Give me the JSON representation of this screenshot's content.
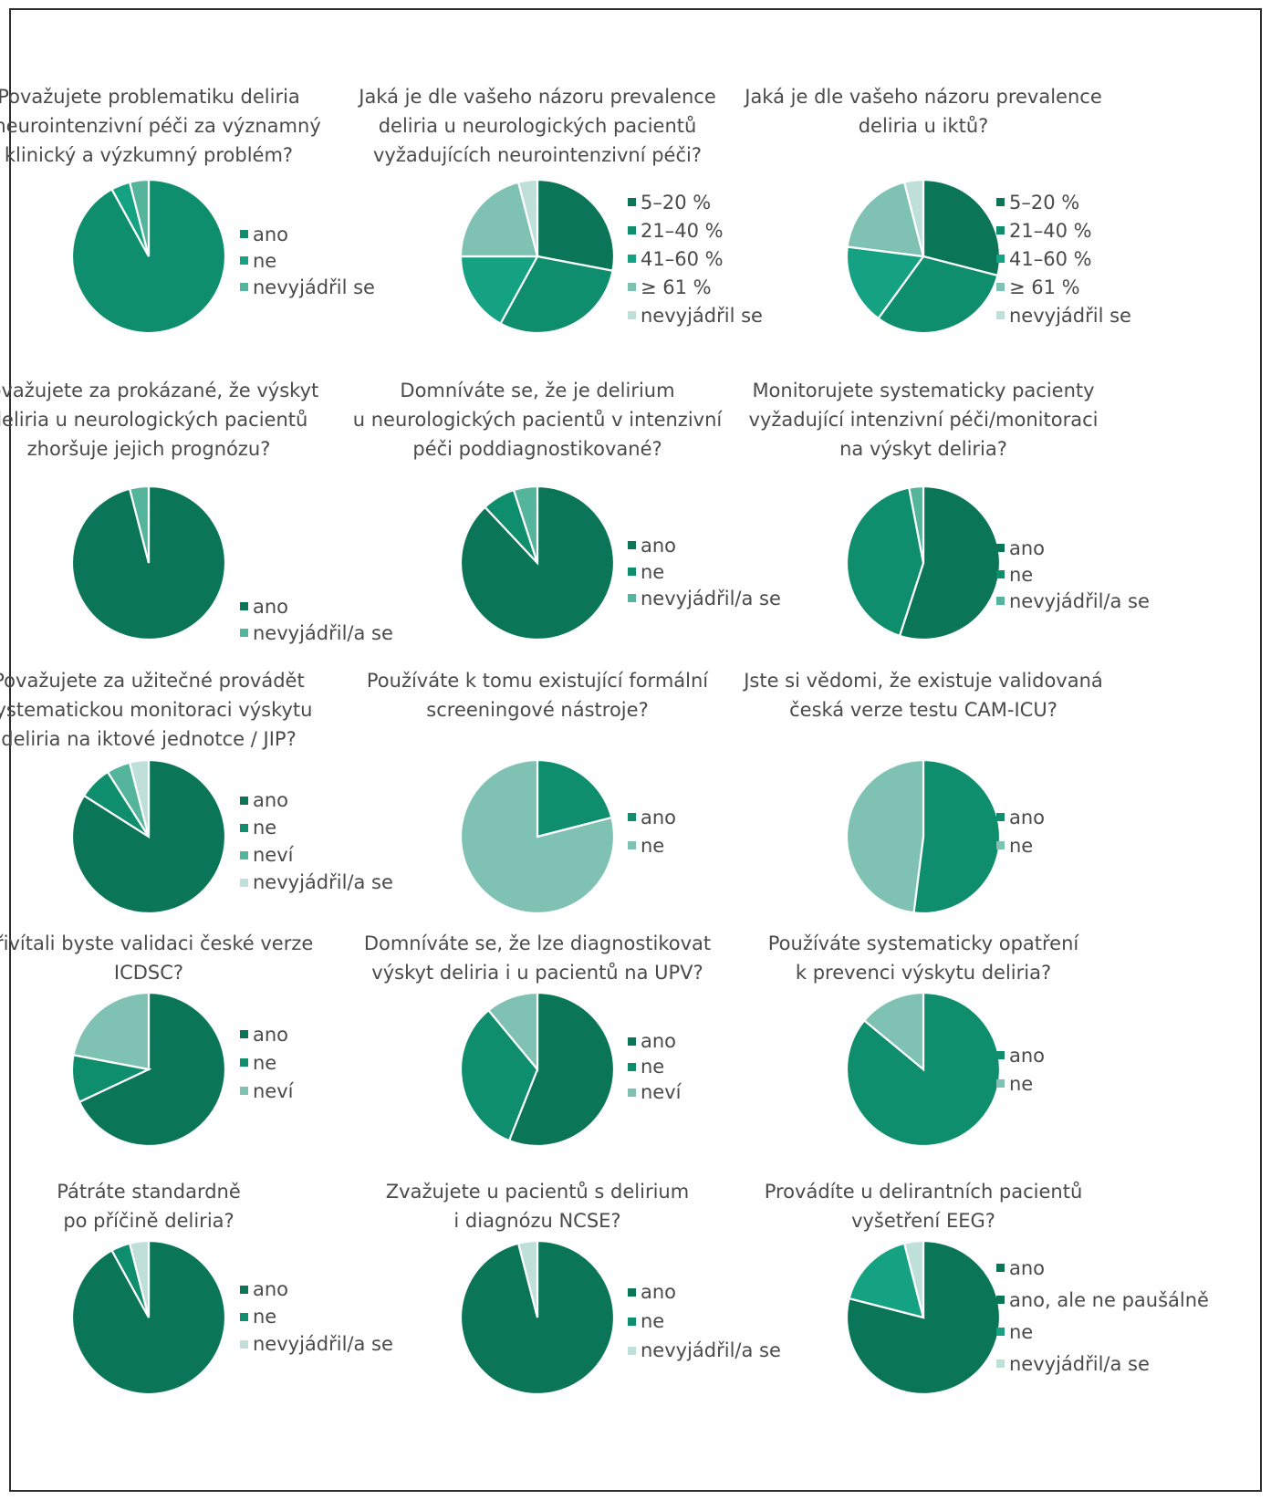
{
  "colors": {
    "c1": "#0b7557",
    "c2": "#0e8e6c",
    "c3": "#15a282",
    "c4": "#7fc2b3",
    "c5": "#bfe0d8"
  },
  "chart_data": [
    {
      "type": "pie",
      "title": "Považujete problematiku deliria\nv neurointenzivní péči za významný\nklinický a výzkumný problém?",
      "categories": [
        "ano",
        "ne",
        "nevyjádřil se"
      ],
      "values": [
        92,
        4,
        4
      ],
      "colors": [
        "#0e8e6c",
        "#15a282",
        "#55b59c"
      ]
    },
    {
      "type": "pie",
      "title": "Jaká je dle vašeho názoru prevalence\ndeliria u neurologických pacientů\nvyžadujících neurointenzivní péči?",
      "categories": [
        "5–20 %",
        "21–40 %",
        "41–60 %",
        "≥ 61 %",
        "nevyjádřil se"
      ],
      "values": [
        28,
        30,
        17,
        21,
        4
      ],
      "colors": [
        "#0b7557",
        "#0e8e6c",
        "#15a282",
        "#7fc2b3",
        "#bfe0d8"
      ]
    },
    {
      "type": "pie",
      "title": "Jaká je dle vašeho názoru prevalence\ndeliria u iktů?",
      "categories": [
        "5–20 %",
        "21–40 %",
        "41–60 %",
        "≥ 61 %",
        "nevyjádřil se"
      ],
      "values": [
        29,
        31,
        17,
        19,
        4
      ],
      "colors": [
        "#0b7557",
        "#0e8e6c",
        "#15a282",
        "#7fc2b3",
        "#bfe0d8"
      ]
    },
    {
      "type": "pie",
      "title": "Považujete za prokázané, že výskyt\ndeliria u neurologických pacientů\nzhoršuje jejich prognózu?",
      "categories": [
        "ano",
        "nevyjádřil/a se"
      ],
      "values": [
        96,
        4
      ],
      "colors": [
        "#0b7557",
        "#55b59c"
      ]
    },
    {
      "type": "pie",
      "title": "Domníváte se, že je delirium\nu neurologických pacientů v intenzivní\npéči poddiagnostikované?",
      "categories": [
        "ano",
        "ne",
        "nevyjádřil/a se"
      ],
      "values": [
        88,
        7,
        5
      ],
      "colors": [
        "#0b7557",
        "#0e8e6c",
        "#55b59c"
      ]
    },
    {
      "type": "pie",
      "title": "Monitorujete systematicky pacienty\nvyžadující intenzivní péči/monitoraci\nna výskyt deliria?",
      "categories": [
        "ano",
        "ne",
        "nevyjádřil/a se"
      ],
      "values": [
        55,
        42,
        3
      ],
      "colors": [
        "#0b7557",
        "#0e8e6c",
        "#55b59c"
      ]
    },
    {
      "type": "pie",
      "title": "Považujete za užitečné provádět\nsystematickou monitoraci výskytu\ndeliria na iktové jednotce / JIP?",
      "categories": [
        "ano",
        "ne",
        "neví",
        "nevyjádřil/a se"
      ],
      "values": [
        84,
        7,
        5,
        4
      ],
      "colors": [
        "#0b7557",
        "#0e8e6c",
        "#55b59c",
        "#bfe0d8"
      ]
    },
    {
      "type": "pie",
      "title": "Používáte k tomu existující formální\nscreeningové nástroje?",
      "categories": [
        "ano",
        "ne"
      ],
      "values": [
        21,
        79
      ],
      "colors": [
        "#0e8e6c",
        "#7fc2b3"
      ]
    },
    {
      "type": "pie",
      "title": "Jste si vědomi, že existuje validovaná\nčeská verze testu CAM-ICU?",
      "categories": [
        "ano",
        "ne"
      ],
      "values": [
        52,
        48
      ],
      "colors": [
        "#0e8e6c",
        "#7fc2b3"
      ]
    },
    {
      "type": "pie",
      "title": "Přivítali byste validaci české verze\nICDSC?",
      "categories": [
        "ano",
        "ne",
        "neví"
      ],
      "values": [
        68,
        10,
        22
      ],
      "colors": [
        "#0b7557",
        "#0e8e6c",
        "#7fc2b3"
      ]
    },
    {
      "type": "pie",
      "title": "Domníváte se, že lze diagnostikovat\nvýskyt deliria i u pacientů na UPV?",
      "categories": [
        "ano",
        "ne",
        "neví"
      ],
      "values": [
        56,
        33,
        11
      ],
      "colors": [
        "#0b7557",
        "#0e8e6c",
        "#7fc2b3"
      ]
    },
    {
      "type": "pie",
      "title": "Používáte systematicky opatření\nk prevenci výskytu deliria?",
      "categories": [
        "ano",
        "ne"
      ],
      "values": [
        86,
        14
      ],
      "colors": [
        "#0e8e6c",
        "#7fc2b3"
      ]
    },
    {
      "type": "pie",
      "title": "Pátráte standardně\npo příčině deliria?",
      "categories": [
        "ano",
        "ne",
        "nevyjádřil/a se"
      ],
      "values": [
        92,
        4,
        4
      ],
      "colors": [
        "#0b7557",
        "#0e8e6c",
        "#bfe0d8"
      ]
    },
    {
      "type": "pie",
      "title": "Zvažujete u pacientů s delirium\ni diagnózu NCSE?",
      "categories": [
        "ano",
        "ne",
        "nevyjádřil/a se"
      ],
      "values": [
        96,
        0,
        4
      ],
      "colors": [
        "#0b7557",
        "#0e8e6c",
        "#bfe0d8"
      ]
    },
    {
      "type": "pie",
      "title": "Provádíte u delirantních pacientů\nvyšetření EEG?",
      "categories": [
        "ano",
        "ano, ale ne paušálně",
        "ne",
        "nevyjádřil/a se"
      ],
      "values": [
        0,
        79,
        17,
        4
      ],
      "colors": [
        "#0b7557",
        "#0b7557",
        "#15a282",
        "#bfe0d8"
      ]
    }
  ]
}
